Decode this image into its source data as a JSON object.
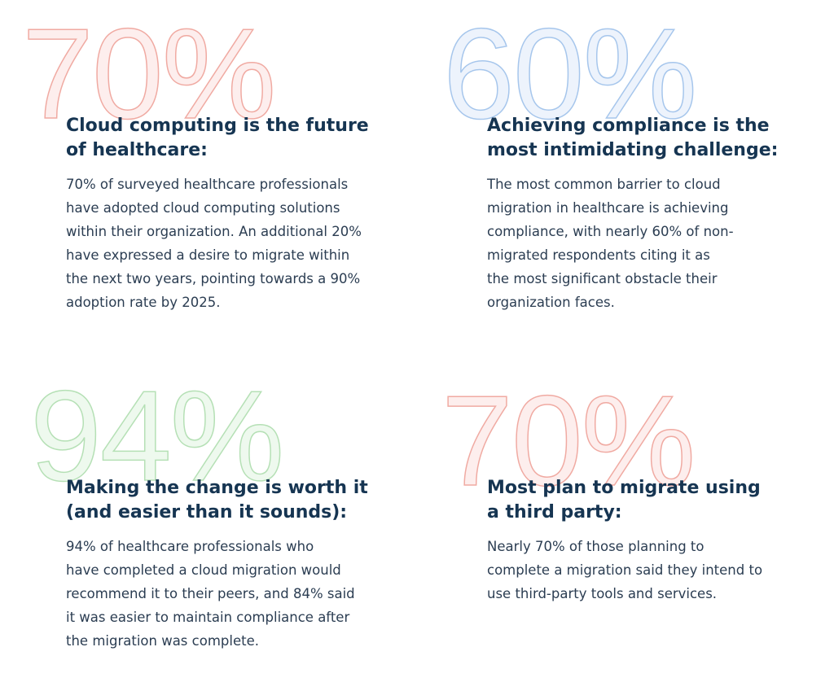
{
  "cards": [
    {
      "big": "70%",
      "heading": [
        "Cloud computing is the future",
        "of healthcare:"
      ],
      "body": [
        "70% of surveyed healthcare professionals",
        "have adopted cloud computing solutions",
        "within their organization. An additional 20%",
        "have expressed a desire to migrate within",
        "the next two years, pointing towards a 90%",
        "adoption rate by 2025."
      ]
    },
    {
      "big": "60%",
      "heading": [
        "Achieving compliance is the",
        "most intimidating challenge:"
      ],
      "body": [
        "The most common barrier to cloud",
        "migration in healthcare is achieving",
        "compliance, with nearly 60% of non-",
        "migrated respondents citing it as",
        "the most significant obstacle their",
        "organization faces."
      ]
    },
    {
      "big": "94%",
      "heading": [
        "Making the change is worth it",
        "(and easier than it sounds):"
      ],
      "body": [
        "94% of healthcare professionals who",
        "have completed a cloud migration would",
        "recommend it to their peers, and 84% said",
        "it was easier to maintain compliance after",
        "the migration was complete."
      ]
    },
    {
      "big": "70%",
      "heading": [
        "Most plan to migrate using",
        "a third party:"
      ],
      "body": [
        "Nearly 70% of those planning to",
        "complete a migration said they intend to",
        "use third-party tools and services."
      ]
    }
  ]
}
